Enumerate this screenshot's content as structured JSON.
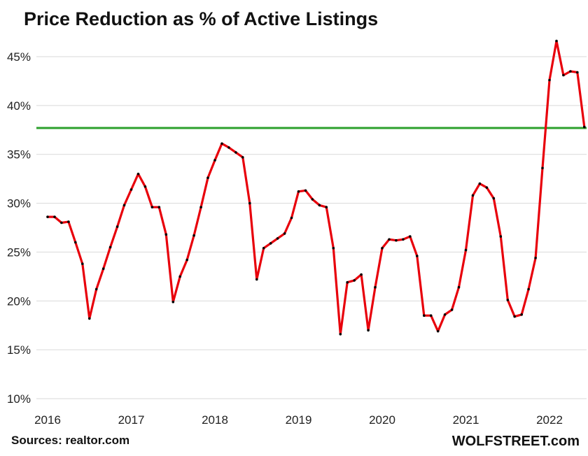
{
  "chart_data": {
    "type": "line",
    "title": "Price Reduction as % of Active Listings",
    "source": "Sources: realtor.com",
    "brand": "WOLFSTREET.com",
    "xlabel": "",
    "ylabel": "",
    "ylim": [
      10,
      47
    ],
    "yticks": [
      10,
      15,
      20,
      25,
      30,
      35,
      40,
      45
    ],
    "ytick_labels": [
      "10%",
      "15%",
      "20%",
      "25%",
      "30%",
      "35%",
      "40%",
      "45%"
    ],
    "xtick_labels": [
      "2016",
      "2017",
      "2018",
      "2019",
      "2020",
      "2021",
      "2022"
    ],
    "grid": true,
    "colors": {
      "series": "#e8000b",
      "markers": "#000000",
      "reference": "#2ca02c",
      "grid": "#d9d9d9"
    },
    "reference_line": {
      "value": 37.7
    },
    "series": [
      {
        "start": "2016-01",
        "frequency": "monthly",
        "values": [
          28.6,
          28.6,
          28.0,
          28.1,
          26.0,
          23.8,
          18.2,
          21.2,
          23.3,
          25.5,
          27.6,
          29.8,
          31.4,
          33.0,
          31.7,
          29.6,
          29.6,
          26.8,
          19.9,
          22.5,
          24.2,
          26.7,
          29.6,
          32.6,
          34.4,
          36.1,
          35.7,
          35.2,
          34.7,
          30.0,
          22.2,
          25.4,
          25.9,
          26.4,
          26.9,
          28.5,
          31.2,
          31.3,
          30.4,
          29.8,
          29.6,
          25.4,
          16.6,
          21.9,
          22.1,
          22.7,
          17.0,
          21.4,
          25.4,
          26.3,
          26.2,
          26.3,
          26.6,
          24.6,
          18.5,
          18.5,
          16.9,
          18.6,
          19.1,
          21.4,
          25.2,
          30.8,
          32.0,
          31.6,
          30.5,
          26.6,
          20.1,
          18.4,
          18.6,
          21.2,
          24.4,
          33.6,
          42.6,
          46.6,
          43.1,
          43.5,
          43.4,
          37.8
        ]
      }
    ]
  }
}
